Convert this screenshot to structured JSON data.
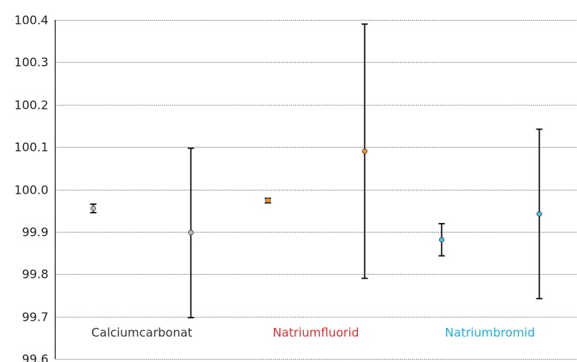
{
  "chart_data": {
    "type": "scatter",
    "title": "",
    "xlabel": "",
    "ylabel": "",
    "ylim": [
      99.6,
      100.4
    ],
    "yticks": [
      99.6,
      99.7,
      99.8,
      99.9,
      100.0,
      100.1,
      100.2,
      100.3,
      100.4
    ],
    "ytick_labels": [
      "99.6",
      "99.7",
      "99.8",
      "99.9",
      "100.0",
      "100.1",
      "100.2",
      "100.3",
      "100.4"
    ],
    "grid": true,
    "legend": "none",
    "categories": [
      {
        "label": "Calciumcarbonat",
        "color": "#333333"
      },
      {
        "label": "Natriumfluorid",
        "color": "#e8302e"
      },
      {
        "label": "Natriumbromid",
        "color": "#1ab0e0"
      }
    ],
    "points": [
      {
        "category": 0,
        "y": 99.955,
        "err_low": 99.945,
        "err_high": 99.965,
        "fill": "#bbbbbb"
      },
      {
        "category": 0,
        "y": 99.898,
        "err_low": 99.697,
        "err_high": 100.097,
        "fill": "#bbbbbb"
      },
      {
        "category": 1,
        "y": 99.974,
        "err_low": 99.968,
        "err_high": 99.979,
        "fill": "#ff8c1a"
      },
      {
        "category": 1,
        "y": 100.09,
        "err_low": 99.79,
        "err_high": 100.39,
        "fill": "#ff8c1a"
      },
      {
        "category": 2,
        "y": 99.881,
        "err_low": 99.843,
        "err_high": 99.919,
        "fill": "#41c0e8"
      },
      {
        "category": 2,
        "y": 99.942,
        "err_low": 99.742,
        "err_high": 100.142,
        "fill": "#41c0e8"
      }
    ]
  }
}
